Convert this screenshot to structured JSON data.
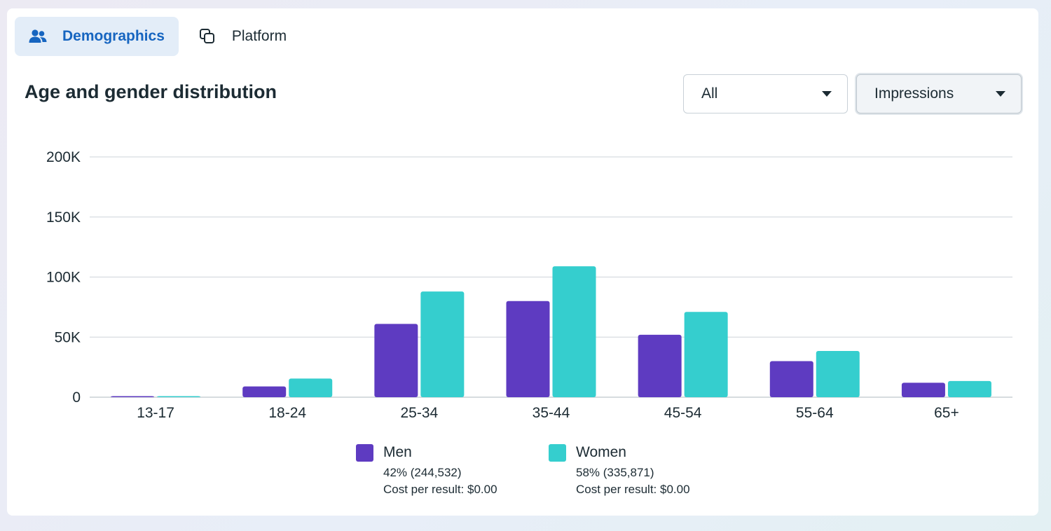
{
  "tabs": [
    {
      "label": "Demographics",
      "icon": "people-icon",
      "active": true
    },
    {
      "label": "Platform",
      "icon": "overlapping-squares-icon",
      "active": false
    }
  ],
  "title": "Age and gender distribution",
  "filters": {
    "audience": "All",
    "metric": "Impressions"
  },
  "colors": {
    "men": "#5e3bc1",
    "women": "#35cece",
    "accent": "#1665c0"
  },
  "chart_data": {
    "type": "bar",
    "title": "Age and gender distribution",
    "xlabel": "",
    "ylabel": "",
    "ylim": [
      0,
      200000
    ],
    "yticks": [
      0,
      50000,
      100000,
      150000,
      200000
    ],
    "ytick_labels": [
      "0",
      "50K",
      "100K",
      "150K",
      "200K"
    ],
    "grid": true,
    "categories": [
      "13-17",
      "18-24",
      "25-34",
      "35-44",
      "45-54",
      "55-64",
      "65+"
    ],
    "series": [
      {
        "name": "Men",
        "color": "#5e3bc1",
        "values": [
          800,
          9000,
          61000,
          80000,
          52000,
          30000,
          12000
        ]
      },
      {
        "name": "Women",
        "color": "#35cece",
        "values": [
          800,
          15500,
          88000,
          109000,
          71000,
          38500,
          13500
        ]
      }
    ],
    "legend": [
      {
        "name": "Men",
        "stat": "42% (244,532)",
        "cost": "Cost per result: $0.00"
      },
      {
        "name": "Women",
        "stat": "58% (335,871)",
        "cost": "Cost per result: $0.00"
      }
    ],
    "legend_position": "bottom"
  }
}
